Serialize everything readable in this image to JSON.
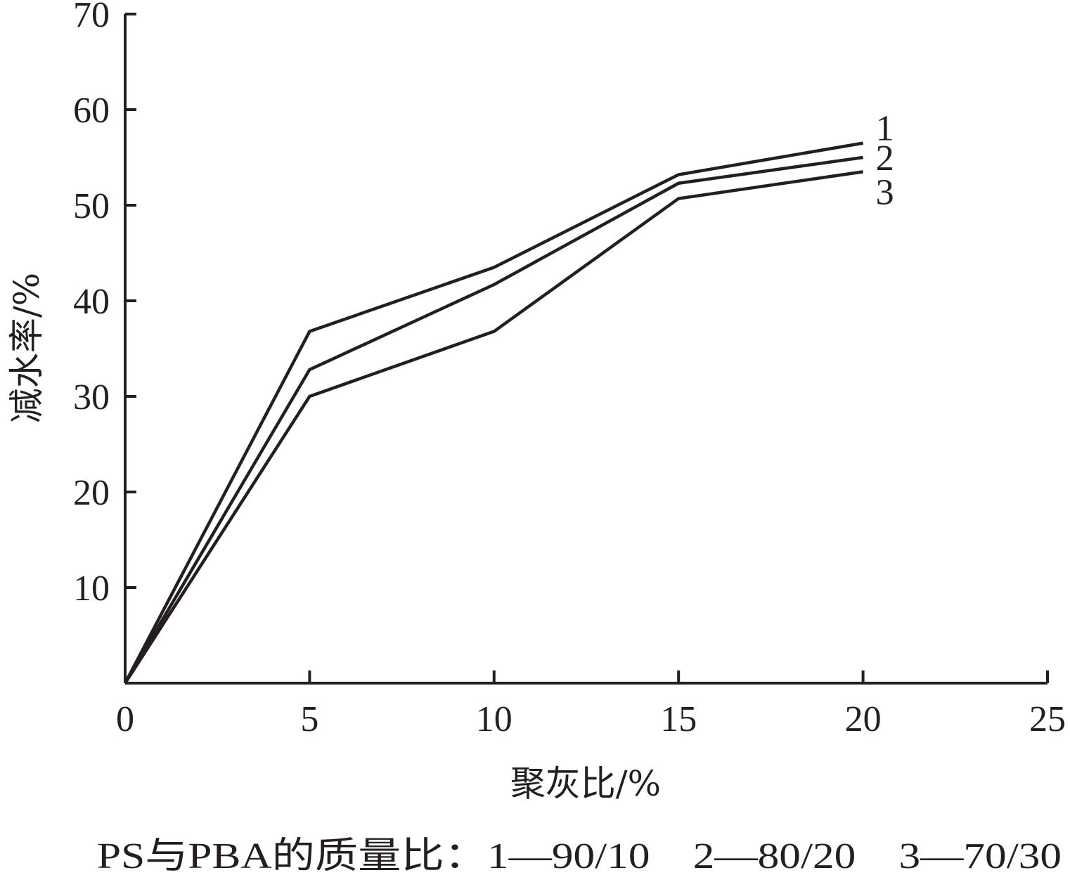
{
  "chart_data": {
    "type": "line",
    "xlabel": "聚灰比/%",
    "ylabel": "减水率/%",
    "xlim": [
      0,
      25
    ],
    "ylim": [
      0,
      70
    ],
    "x_ticks": [
      "0",
      "5",
      "10",
      "15",
      "20",
      "25"
    ],
    "y_ticks": [
      "10",
      "20",
      "30",
      "40",
      "50",
      "60",
      "70"
    ],
    "grid": false,
    "x": [
      0,
      5,
      10,
      15,
      20
    ],
    "series": [
      {
        "name": "1",
        "values": [
          0,
          36.8,
          43.5,
          53.2,
          56.5
        ]
      },
      {
        "name": "2",
        "values": [
          0,
          32.8,
          41.7,
          52.3,
          55.0
        ]
      },
      {
        "name": "3",
        "values": [
          0,
          30.0,
          36.8,
          50.7,
          53.5
        ]
      }
    ],
    "caption": "PS与PBA的质量比：1—90/10　2—80/20　3—70/30"
  }
}
